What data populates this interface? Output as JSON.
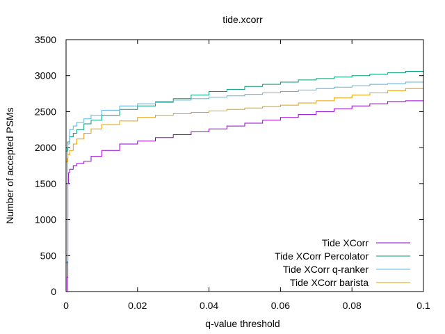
{
  "chart_data": {
    "type": "line",
    "title": "tide.xcorr",
    "xlabel": "q-value threshold",
    "ylabel": "Number of accepted PSMs",
    "xlim": [
      0,
      0.1
    ],
    "ylim": [
      0,
      3500
    ],
    "xticks": [
      0,
      0.02,
      0.04,
      0.06,
      0.08,
      0.1
    ],
    "xtick_labels": [
      "0",
      "0.02",
      "0.04",
      "0.06",
      "0.08",
      "0.1"
    ],
    "yticks": [
      0,
      500,
      1000,
      1500,
      2000,
      2500,
      3000,
      3500
    ],
    "ytick_labels": [
      "0",
      "500",
      "1000",
      "1500",
      "2000",
      "2500",
      "3000",
      "3500"
    ],
    "grid": false,
    "legend_position": "bottom-right",
    "series": [
      {
        "name": "Tide XCorr",
        "color": "#9400d3",
        "points": [
          [
            0.0,
            0
          ],
          [
            0.0003,
            200
          ],
          [
            0.0005,
            1500
          ],
          [
            0.0007,
            1650
          ],
          [
            0.001,
            1700
          ],
          [
            0.002,
            1750
          ],
          [
            0.003,
            1780
          ],
          [
            0.005,
            1810
          ],
          [
            0.007,
            1880
          ],
          [
            0.01,
            1960
          ],
          [
            0.015,
            2050
          ],
          [
            0.02,
            2090
          ],
          [
            0.025,
            2140
          ],
          [
            0.03,
            2180
          ],
          [
            0.035,
            2220
          ],
          [
            0.04,
            2260
          ],
          [
            0.045,
            2300
          ],
          [
            0.05,
            2340
          ],
          [
            0.055,
            2380
          ],
          [
            0.06,
            2420
          ],
          [
            0.065,
            2460
          ],
          [
            0.07,
            2500
          ],
          [
            0.075,
            2540
          ],
          [
            0.08,
            2580
          ],
          [
            0.085,
            2610
          ],
          [
            0.09,
            2640
          ],
          [
            0.095,
            2650
          ],
          [
            0.1,
            2670
          ]
        ]
      },
      {
        "name": "Tide XCorr Percolator",
        "color": "#009e73",
        "points": [
          [
            0.0,
            1950
          ],
          [
            0.0003,
            2000
          ],
          [
            0.0005,
            2080
          ],
          [
            0.001,
            2150
          ],
          [
            0.002,
            2200
          ],
          [
            0.003,
            2250
          ],
          [
            0.005,
            2330
          ],
          [
            0.007,
            2380
          ],
          [
            0.01,
            2450
          ],
          [
            0.015,
            2530
          ],
          [
            0.02,
            2580
          ],
          [
            0.025,
            2630
          ],
          [
            0.03,
            2680
          ],
          [
            0.035,
            2730
          ],
          [
            0.04,
            2780
          ],
          [
            0.045,
            2810
          ],
          [
            0.05,
            2850
          ],
          [
            0.055,
            2880
          ],
          [
            0.06,
            2910
          ],
          [
            0.065,
            2940
          ],
          [
            0.07,
            2960
          ],
          [
            0.075,
            2980
          ],
          [
            0.08,
            3000
          ],
          [
            0.085,
            3020
          ],
          [
            0.09,
            3040
          ],
          [
            0.095,
            3060
          ],
          [
            0.1,
            3070
          ]
        ]
      },
      {
        "name": "Tide XCorr q-ranker",
        "color": "#56b4e9",
        "points": [
          [
            0.0,
            400
          ],
          [
            0.0003,
            420
          ],
          [
            0.0005,
            2050
          ],
          [
            0.001,
            2250
          ],
          [
            0.002,
            2300
          ],
          [
            0.003,
            2350
          ],
          [
            0.005,
            2400
          ],
          [
            0.007,
            2450
          ],
          [
            0.01,
            2520
          ],
          [
            0.015,
            2580
          ],
          [
            0.02,
            2610
          ],
          [
            0.025,
            2640
          ],
          [
            0.03,
            2660
          ],
          [
            0.035,
            2680
          ],
          [
            0.04,
            2700
          ],
          [
            0.045,
            2720
          ],
          [
            0.05,
            2740
          ],
          [
            0.055,
            2760
          ],
          [
            0.06,
            2780
          ],
          [
            0.065,
            2800
          ],
          [
            0.07,
            2820
          ],
          [
            0.075,
            2840
          ],
          [
            0.08,
            2860
          ],
          [
            0.085,
            2880
          ],
          [
            0.09,
            2890
          ],
          [
            0.095,
            2910
          ],
          [
            0.1,
            2920
          ]
        ]
      },
      {
        "name": "Tide XCorr barista",
        "color": "#e69f00",
        "points": [
          [
            0.0,
            1800
          ],
          [
            0.0003,
            1850
          ],
          [
            0.0005,
            1900
          ],
          [
            0.001,
            1960
          ],
          [
            0.002,
            2050
          ],
          [
            0.003,
            2120
          ],
          [
            0.005,
            2200
          ],
          [
            0.007,
            2260
          ],
          [
            0.01,
            2320
          ],
          [
            0.015,
            2370
          ],
          [
            0.02,
            2420
          ],
          [
            0.025,
            2450
          ],
          [
            0.03,
            2470
          ],
          [
            0.035,
            2490
          ],
          [
            0.04,
            2510
          ],
          [
            0.045,
            2530
          ],
          [
            0.05,
            2550
          ],
          [
            0.055,
            2570
          ],
          [
            0.06,
            2590
          ],
          [
            0.065,
            2620
          ],
          [
            0.07,
            2650
          ],
          [
            0.075,
            2690
          ],
          [
            0.08,
            2730
          ],
          [
            0.085,
            2760
          ],
          [
            0.09,
            2790
          ],
          [
            0.095,
            2820
          ],
          [
            0.1,
            2850
          ]
        ]
      }
    ]
  }
}
